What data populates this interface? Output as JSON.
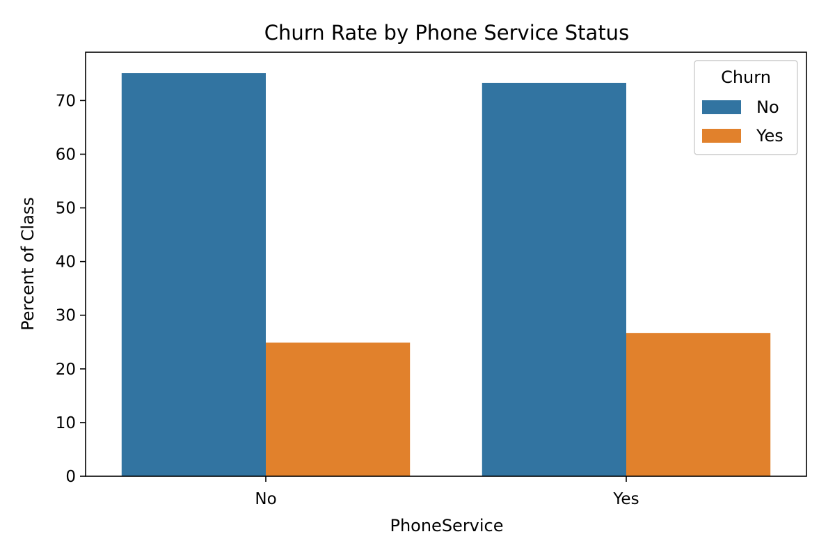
{
  "chart_data": {
    "type": "bar",
    "title": "Churn Rate by Phone Service Status",
    "xlabel": "PhoneService",
    "ylabel": "Percent of Class",
    "categories": [
      "No",
      "Yes"
    ],
    "series": [
      {
        "name": "No",
        "values": [
          75.1,
          73.3
        ],
        "color": "#3274a1"
      },
      {
        "name": "Yes",
        "values": [
          24.9,
          26.7
        ],
        "color": "#e1812c"
      }
    ],
    "ylim": [
      0,
      79
    ],
    "yticks": [
      0,
      10,
      20,
      30,
      40,
      50,
      60,
      70
    ],
    "legend": {
      "title": "Churn",
      "placement": "top-right"
    },
    "grid": false
  }
}
